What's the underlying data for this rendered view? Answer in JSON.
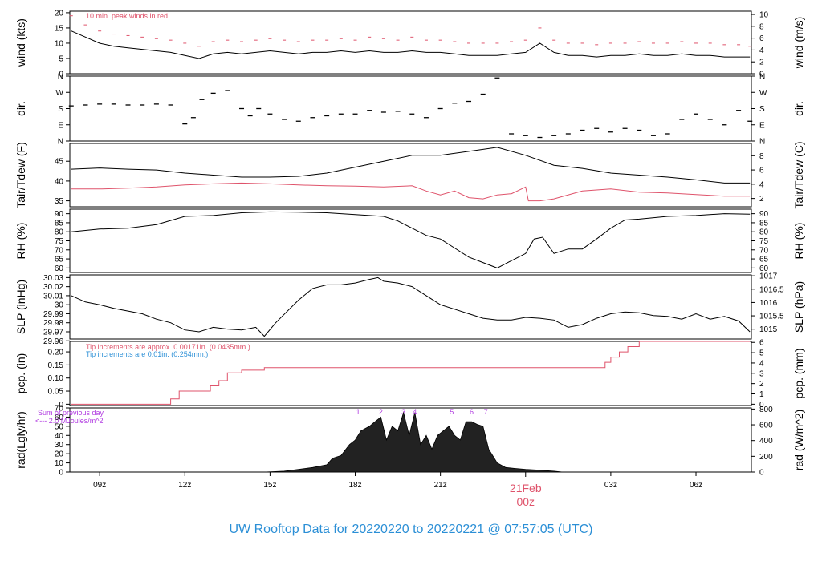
{
  "footer": {
    "title": "UW Rooftop Data for 20220220  to  20220221 @ 07:57:05  (UTC)",
    "color": "#2b8fd6"
  },
  "colors": {
    "primary": "#000000",
    "secondary": "#df536b",
    "note_blue": "#2b8fd6",
    "rad_note": "#b03ae0"
  },
  "x_axis": {
    "ticks": [
      {
        "t": 9,
        "label": "09z"
      },
      {
        "t": 12,
        "label": "12z"
      },
      {
        "t": 15,
        "label": "15z"
      },
      {
        "t": 18,
        "label": "18z"
      },
      {
        "t": 21,
        "label": "21z"
      },
      {
        "t": 27,
        "label": "03z"
      },
      {
        "t": 30,
        "label": "06z"
      }
    ],
    "day_marker": {
      "t": 24,
      "date_label": "21Feb",
      "time_label": "00z"
    },
    "range": [
      7.95,
      31.95
    ]
  },
  "chart_data": [
    {
      "type": "line",
      "panel": "wind",
      "ylabel_left": "wind (kts)",
      "ylabel_right": "wind (m/s)",
      "ylim": [
        0,
        20.5
      ],
      "left_ticks": [
        0,
        5,
        10,
        15,
        20
      ],
      "right_ticks": [
        0,
        2,
        4,
        6,
        8,
        10
      ],
      "right_factor": 0.5144,
      "annotation": "10 min. peak winds in red",
      "series": [
        {
          "role": "primary",
          "x": [
            8,
            8.5,
            9,
            9.5,
            10,
            10.5,
            11,
            11.5,
            12,
            12.5,
            13,
            13.5,
            14,
            14.5,
            15,
            15.5,
            16,
            16.5,
            17,
            17.5,
            18,
            18.5,
            19,
            19.5,
            20,
            20.5,
            21,
            21.5,
            22,
            22.5,
            23,
            23.5,
            24,
            24.5,
            25,
            25.5,
            26,
            26.5,
            27,
            27.5,
            28,
            28.5,
            29,
            29.5,
            30,
            30.5,
            31,
            31.5,
            31.9
          ],
          "y": [
            14,
            12,
            10,
            9,
            8.5,
            8,
            7.5,
            7,
            6,
            5,
            6.5,
            7,
            6.5,
            7,
            7.5,
            7,
            6.5,
            7,
            7,
            7.5,
            7,
            7.5,
            7,
            7,
            7.5,
            7,
            7,
            6.5,
            6,
            6,
            6,
            6.5,
            7,
            10,
            7,
            6,
            6,
            5.5,
            6,
            6,
            6.5,
            6,
            6,
            6.5,
            6,
            6,
            5.5,
            5.5,
            5.5
          ]
        },
        {
          "role": "peak",
          "x": [
            8,
            8.5,
            9,
            9.5,
            10,
            10.5,
            11,
            11.5,
            12,
            12.5,
            13,
            13.5,
            14,
            14.5,
            15,
            15.5,
            16,
            16.5,
            17,
            17.5,
            18,
            18.5,
            19,
            19.5,
            20,
            20.5,
            21,
            21.5,
            22,
            22.5,
            23,
            23.5,
            24,
            24.5,
            25,
            25.5,
            26,
            26.5,
            27,
            27.5,
            28,
            28.5,
            29,
            29.5,
            30,
            30.5,
            31,
            31.5,
            31.9
          ],
          "y": [
            19,
            16,
            14,
            13,
            12.5,
            12,
            11.5,
            11,
            10,
            9,
            10.5,
            11,
            10.5,
            11,
            11.5,
            11,
            10.5,
            11,
            11,
            11.5,
            11,
            12,
            11.5,
            11,
            12,
            11,
            11,
            10.5,
            10,
            10,
            10,
            10.5,
            11,
            15,
            11,
            10,
            10,
            9.5,
            10,
            10,
            10.5,
            10,
            10,
            10.5,
            10,
            10,
            9.5,
            9.5,
            9
          ]
        }
      ]
    },
    {
      "type": "scatter",
      "panel": "dir",
      "ylabel_left": "dir.",
      "ylabel_right": "dir.",
      "ylim": [
        0,
        360
      ],
      "left_ticks": [
        0,
        90,
        180,
        270,
        360
      ],
      "tick_labels": [
        "N",
        "E",
        "S",
        "W",
        "N"
      ],
      "series": [
        {
          "role": "primary",
          "x": [
            8,
            8.5,
            9,
            9.5,
            10,
            10.5,
            11,
            11.5,
            12,
            12.3,
            12.6,
            13,
            13.5,
            14,
            14.3,
            14.6,
            15,
            15.5,
            16,
            16.5,
            17,
            17.5,
            18,
            18.5,
            19,
            19.5,
            20,
            20.5,
            21,
            21.5,
            22,
            22.5,
            23,
            23.5,
            24,
            24.5,
            25,
            25.5,
            26,
            26.5,
            27,
            27.5,
            28,
            28.5,
            29,
            29.5,
            30,
            30.5,
            31,
            31.5,
            31.9
          ],
          "y": [
            195,
            200,
            205,
            205,
            200,
            200,
            205,
            200,
            95,
            130,
            230,
            265,
            280,
            180,
            140,
            180,
            150,
            120,
            110,
            130,
            140,
            150,
            150,
            170,
            160,
            165,
            150,
            130,
            180,
            210,
            220,
            260,
            350,
            40,
            30,
            20,
            30,
            40,
            60,
            70,
            50,
            70,
            60,
            30,
            40,
            120,
            150,
            120,
            90,
            170,
            110
          ]
        }
      ]
    },
    {
      "type": "line",
      "panel": "temp",
      "ylabel_left": "Tair/Tdew (F)",
      "ylabel_right": "Tair/Tdew (C)",
      "ylim": [
        33.5,
        49.5
      ],
      "left_ticks": [
        35,
        40,
        45
      ],
      "right_ticks": [
        2,
        4,
        6,
        8
      ],
      "right_kind": "F_to_C",
      "series": [
        {
          "role": "air",
          "x": [
            8,
            9,
            10,
            11,
            12,
            13,
            14,
            15,
            16,
            17,
            18,
            19,
            20,
            21,
            22,
            23,
            24,
            25,
            26,
            27,
            28,
            29,
            30,
            31,
            31.9
          ],
          "y": [
            43,
            43.3,
            43,
            42.8,
            42,
            41.5,
            41,
            41,
            41.2,
            42,
            43.5,
            45,
            46.5,
            46.5,
            47.5,
            48.5,
            46.5,
            44,
            43.2,
            42,
            41.5,
            41,
            40.3,
            39.5,
            39.5
          ]
        },
        {
          "role": "dew",
          "x": [
            8,
            9,
            10,
            11,
            12,
            13,
            14,
            15,
            16,
            17,
            18,
            19,
            20,
            20.5,
            21,
            21.5,
            22,
            22.5,
            23,
            23.5,
            24,
            24.1,
            24.5,
            25,
            26,
            27,
            28,
            29,
            30,
            31,
            31.9
          ],
          "y": [
            38,
            38,
            38.2,
            38.5,
            39,
            39.3,
            39.5,
            39.3,
            39,
            38.8,
            38.7,
            38.5,
            38.8,
            37.5,
            36.5,
            37.5,
            35.8,
            35.5,
            36.5,
            36.8,
            38.5,
            35,
            35,
            35.5,
            37.5,
            38,
            37.2,
            37,
            36.6,
            36.2,
            36.2
          ]
        }
      ]
    },
    {
      "type": "line",
      "panel": "rh",
      "ylabel_left": "RH (%)",
      "ylabel_right": "RH (%)",
      "ylim": [
        57.5,
        92.5
      ],
      "left_ticks": [
        60,
        65,
        70,
        75,
        80,
        85,
        90
      ],
      "right_ticks": [
        60,
        65,
        70,
        75,
        80,
        85,
        90
      ],
      "series": [
        {
          "role": "primary",
          "x": [
            8,
            9,
            10,
            11,
            12,
            13,
            14,
            15,
            16,
            17,
            18,
            19,
            19.5,
            20,
            20.5,
            21,
            21.5,
            22,
            22.5,
            23,
            23.5,
            24,
            24.3,
            24.6,
            25,
            25.5,
            26,
            26.5,
            27,
            27.5,
            28,
            29,
            30,
            31,
            31.9
          ],
          "y": [
            80,
            81.5,
            82,
            84,
            88.5,
            89,
            90.5,
            91,
            90.8,
            90.5,
            89.5,
            88.5,
            86,
            82,
            78,
            76,
            71,
            66,
            63,
            60,
            64,
            68,
            76,
            77,
            68,
            70.5,
            70.5,
            76,
            82,
            86.5,
            87,
            88.5,
            89,
            90,
            89.7
          ]
        }
      ]
    },
    {
      "type": "line",
      "panel": "slp",
      "ylabel_left": "SLP (inHg)",
      "ylabel_right": "SLP (hPa)",
      "ylim": [
        29.962,
        30.033
      ],
      "left_ticks": [
        29.96,
        29.97,
        29.98,
        29.99,
        30.0,
        30.01,
        30.02,
        30.03
      ],
      "right_ticks": [
        1015,
        1015.5,
        1016,
        1016.5,
        1017
      ],
      "right_factor": 33.8639,
      "series": [
        {
          "role": "primary",
          "x": [
            8,
            8.5,
            9,
            9.5,
            10,
            10.5,
            11,
            11.5,
            12,
            12.5,
            13,
            13.5,
            14,
            14.5,
            14.8,
            15.2,
            16,
            16.5,
            17,
            17.5,
            18,
            18.5,
            18.8,
            19,
            19.5,
            20,
            20.5,
            21,
            21.5,
            22,
            22.5,
            23,
            23.5,
            24,
            24.5,
            25,
            25.5,
            26,
            26.5,
            27,
            27.5,
            28,
            28.5,
            29,
            29.5,
            30,
            30.5,
            31,
            31.5,
            31.9
          ],
          "y": [
            30.01,
            30.003,
            30.0,
            29.996,
            29.993,
            29.99,
            29.984,
            29.98,
            29.972,
            29.97,
            29.975,
            29.973,
            29.972,
            29.975,
            29.965,
            29.98,
            30.005,
            30.018,
            30.022,
            30.022,
            30.024,
            30.028,
            30.03,
            30.026,
            30.024,
            30.02,
            30.01,
            30.0,
            29.995,
            29.99,
            29.985,
            29.983,
            29.983,
            29.986,
            29.985,
            29.983,
            29.975,
            29.978,
            29.985,
            29.99,
            29.992,
            29.991,
            29.988,
            29.987,
            29.984,
            29.99,
            29.984,
            29.987,
            29.982,
            29.97
          ]
        }
      ]
    },
    {
      "type": "line",
      "panel": "pcp",
      "ylabel_left": "pcp. (in)",
      "ylabel_right": "pcp. (mm)",
      "ylim": [
        -0.005,
        0.24
      ],
      "left_ticks": [
        0.0,
        0.05,
        0.1,
        0.15,
        0.2
      ],
      "right_ticks": [
        0,
        1,
        2,
        3,
        4,
        5,
        6
      ],
      "right_factor": 25.4,
      "notes": [
        "Tip increments are approx. 0.00171in. (0.0435mm.)",
        "Tip increments are 0.01in. (0.254mm.)"
      ],
      "series": [
        {
          "role": "accumulated",
          "x": [
            8,
            11.2,
            11.5,
            11.8,
            12.4,
            12.9,
            13.2,
            13.5,
            14,
            14.5,
            14.8,
            26.5,
            26.8,
            27,
            27.3,
            27.6,
            28,
            28.5,
            31.9
          ],
          "y": [
            0,
            0,
            0.02,
            0.05,
            0.05,
            0.07,
            0.09,
            0.12,
            0.13,
            0.13,
            0.14,
            0.14,
            0.16,
            0.18,
            0.2,
            0.22,
            0.24,
            0.24,
            0.24
          ]
        }
      ]
    },
    {
      "type": "area",
      "panel": "rad",
      "ylabel_left": "rad(Lgly/hr)",
      "ylabel_right": "rad (W/m^2)",
      "ylim": [
        0,
        70
      ],
      "left_ticks": [
        0,
        10,
        20,
        30,
        40,
        50,
        60,
        70
      ],
      "right_ticks": [
        0,
        200,
        400,
        600,
        800
      ],
      "right_factor": 11.63,
      "notes": [
        "Sum of previous day",
        "<--- 2.0 MJoules/m^2"
      ],
      "marker_labels": [
        {
          "t": 18.1,
          "label": "1"
        },
        {
          "t": 18.9,
          "label": "2"
        },
        {
          "t": 19.7,
          "label": "3"
        },
        {
          "t": 20.1,
          "label": "4"
        },
        {
          "t": 21.4,
          "label": "5"
        },
        {
          "t": 22.1,
          "label": "6"
        },
        {
          "t": 22.6,
          "label": "7"
        }
      ],
      "series": [
        {
          "role": "primary",
          "x": [
            14.8,
            15.5,
            16,
            16.5,
            17,
            17.2,
            17.5,
            17.8,
            18,
            18.2,
            18.5,
            18.7,
            18.9,
            19.1,
            19.3,
            19.5,
            19.7,
            19.9,
            20.1,
            20.3,
            20.5,
            20.7,
            20.9,
            21.1,
            21.3,
            21.5,
            21.7,
            21.9,
            22.1,
            22.3,
            22.5,
            22.7,
            23,
            23.3,
            23.6,
            24,
            24.5,
            25,
            25.3
          ],
          "y": [
            0,
            1,
            3,
            5,
            8,
            15,
            18,
            30,
            35,
            45,
            50,
            55,
            60,
            35,
            50,
            45,
            65,
            40,
            65,
            30,
            40,
            25,
            40,
            45,
            50,
            40,
            35,
            55,
            55,
            52,
            50,
            25,
            10,
            5,
            4,
            3,
            2,
            1,
            0
          ]
        }
      ]
    }
  ]
}
